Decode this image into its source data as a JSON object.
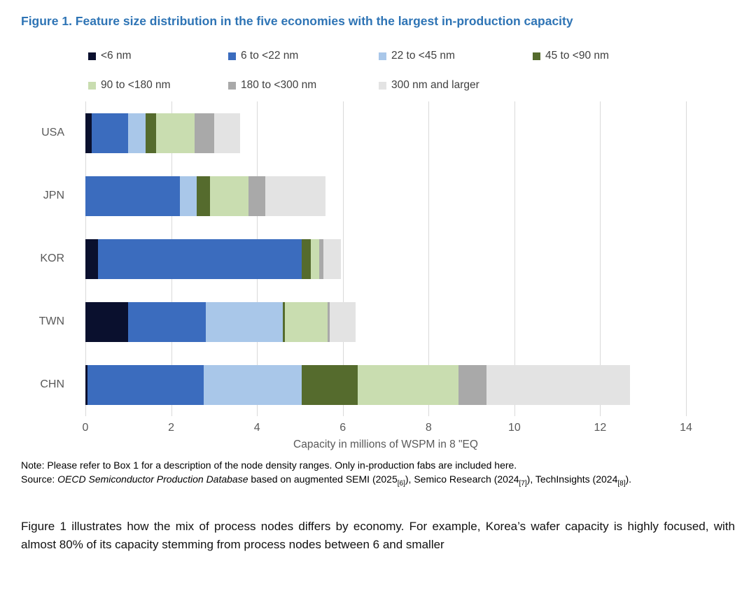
{
  "figure": {
    "title": "Figure 1. Feature size distribution in the five economies with the largest in-production capacity"
  },
  "chart_data": {
    "type": "bar",
    "orientation": "horizontal",
    "stacked": true,
    "categories": [
      "USA",
      "JPN",
      "KOR",
      "TWN",
      "CHN"
    ],
    "series": [
      {
        "name": "<6 nm",
        "color": "#0a102e",
        "values": [
          0.15,
          0.0,
          0.3,
          1.0,
          0.05
        ]
      },
      {
        "name": "6 to <22 nm",
        "color": "#3b6cbe",
        "values": [
          0.85,
          2.2,
          4.75,
          1.8,
          2.7
        ]
      },
      {
        "name": "22 to <45 nm",
        "color": "#a9c7e9",
        "values": [
          0.4,
          0.4,
          0.0,
          1.8,
          2.3
        ]
      },
      {
        "name": "45 to <90 nm",
        "color": "#556b2d",
        "values": [
          0.25,
          0.3,
          0.2,
          0.05,
          1.3
        ]
      },
      {
        "name": "90 to <180 nm",
        "color": "#c9ddb0",
        "values": [
          0.9,
          0.9,
          0.2,
          1.0,
          2.35
        ]
      },
      {
        "name": "180 to <300 nm",
        "color": "#a9a9a9",
        "values": [
          0.45,
          0.4,
          0.1,
          0.05,
          0.65
        ]
      },
      {
        "name": "300 nm and larger",
        "color": "#e3e3e3",
        "values": [
          0.6,
          1.4,
          0.4,
          0.6,
          3.35
        ]
      }
    ],
    "totals": [
      3.6,
      5.6,
      5.95,
      6.3,
      12.7
    ],
    "xlabel": "Capacity in millions of WSPM in 8 \"EQ",
    "xlim": [
      0,
      14
    ],
    "xticks": [
      0,
      2,
      4,
      6,
      8,
      10,
      12,
      14
    ],
    "grid": "vertical",
    "legend_position": "top"
  },
  "notes": {
    "note": "Note: Please refer to Box 1 for a description of the node density ranges. Only in-production fabs are included here.",
    "source": {
      "label": "Source: ",
      "db": "OECD Semiconductor Production Database",
      "mid": " based on augmented SEMI (2025",
      "ref1": "[6]",
      "s2": "), Semico Research (2024",
      "ref2": "[7]",
      "s3": "), TechInsights (2024",
      "ref3": "[8]",
      "s4": ")."
    }
  },
  "body": {
    "paragraph": "Figure 1 illustrates how the mix of process nodes differs by economy. For example, Korea’s wafer capacity is highly focused, with almost 80% of its capacity stemming from process nodes between 6 and smaller"
  }
}
